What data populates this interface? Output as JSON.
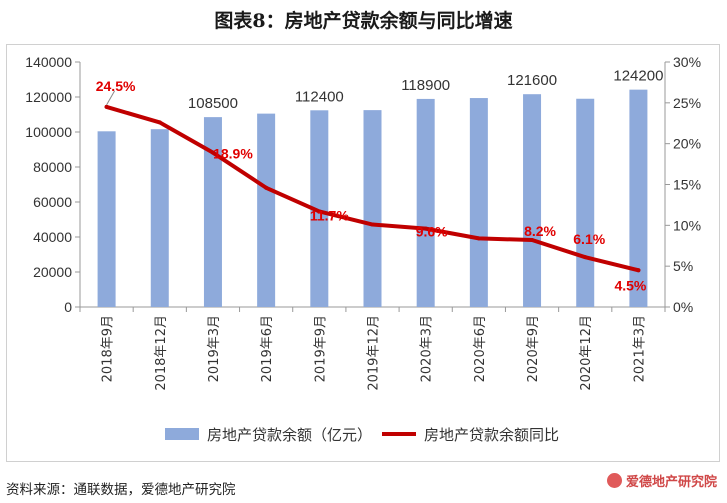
{
  "title": "图表8：房地产贷款余额与同比增速",
  "source": "资料来源：通联数据，爱德地产研究院",
  "watermark": {
    "text": "爱德地产研究院",
    "icon": "logo-icon"
  },
  "colors": {
    "bar": "#8eaadb",
    "line": "#c00000",
    "line_label": "#e00000",
    "axis": "#999999",
    "text": "#333333"
  },
  "chart_data": {
    "type": "bar+line",
    "categories": [
      "2018年9月",
      "2018年12月",
      "2019年3月",
      "2019年6月",
      "2019年9月",
      "2019年12月",
      "2020年3月",
      "2020年6月",
      "2020年9月",
      "2020年12月",
      "2021年3月"
    ],
    "series": [
      {
        "name": "房地产贷款余额（亿元）",
        "type": "bar",
        "axis": "left",
        "values": [
          100400,
          101600,
          108500,
          110500,
          112400,
          112500,
          118900,
          119400,
          121600,
          119000,
          124200
        ],
        "data_labels": [
          null,
          null,
          "108500",
          null,
          "112400",
          null,
          "118900",
          null,
          "121600",
          null,
          "124200"
        ]
      },
      {
        "name": "房地产贷款余额同比",
        "type": "line",
        "axis": "right",
        "values": [
          24.5,
          22.6,
          18.9,
          14.6,
          11.7,
          10.1,
          9.6,
          8.4,
          8.2,
          6.1,
          4.5
        ],
        "data_labels": [
          "24.5%",
          null,
          "18.9%",
          null,
          "11.7%",
          null,
          "9.6%",
          null,
          "8.2%",
          "6.1%",
          "4.5%"
        ]
      }
    ],
    "y_left": {
      "min": 0,
      "max": 140000,
      "ticks": [
        "0",
        "20000",
        "40000",
        "60000",
        "80000",
        "100000",
        "120000",
        "140000"
      ]
    },
    "y_right": {
      "min": 0,
      "max": 30,
      "ticks": [
        "0%",
        "5%",
        "10%",
        "15%",
        "20%",
        "25%",
        "30%"
      ]
    },
    "legend_position": "bottom",
    "grid": false
  }
}
